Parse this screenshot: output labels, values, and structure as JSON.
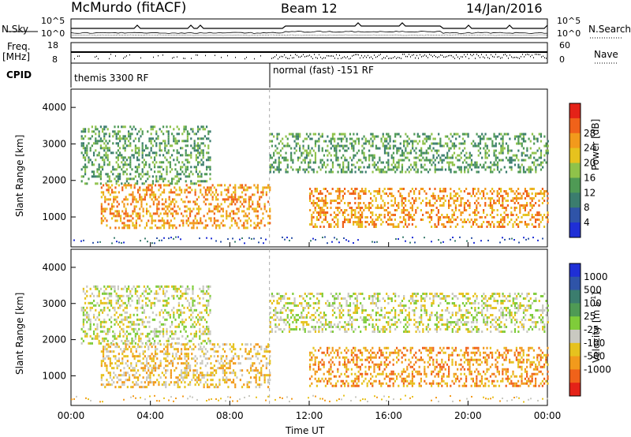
{
  "header": {
    "station": "McMurdo (fitACF)",
    "beam": "Beam 12",
    "date": "14/Jan/2016"
  },
  "strip": {
    "nsky_label": "N.Sky",
    "nsky_ticks": [
      "10^5",
      "10^0"
    ],
    "nsearch_label": "N.Search",
    "nsearch_ticks": [
      "10^5",
      "10^0"
    ],
    "freq_label": "Freq.",
    "freq_unit": "[MHz]",
    "freq_ticks": [
      "18",
      "8"
    ],
    "nave_label": "Nave",
    "nave_ticks": [
      "60",
      "0"
    ],
    "cpid_label": "CPID",
    "cpid_segments": [
      "themis 3300 RF",
      "normal (fast) -151 RF"
    ]
  },
  "colors": {
    "power": [
      "#1f2fd6",
      "#2f54a8",
      "#3b7d6e",
      "#4f9a55",
      "#8fc24a",
      "#e6c21e",
      "#f29a1c",
      "#f0621a",
      "#e42218"
    ],
    "velocity": [
      "#1f2fd6",
      "#2f54a8",
      "#3b7d6e",
      "#4f9a55",
      "#7fcc3a",
      "#c9c9c1",
      "#e6c21e",
      "#f29a1c",
      "#f0621a",
      "#e42218"
    ]
  },
  "chart_data": [
    {
      "type": "heatmap",
      "title": "",
      "xlabel": "",
      "ylabel": "Slant Range [km]",
      "xlim": [
        "00:00",
        "00:00"
      ],
      "ylim": [
        180,
        4500
      ],
      "x_ticks": [
        "00:00",
        "04:00",
        "08:00",
        "12:00",
        "16:00",
        "20:00",
        "00:00"
      ],
      "y_ticks": [
        "1000",
        "2000",
        "3000",
        "4000"
      ],
      "colorbar": {
        "label": "Power [dB]",
        "ticks": [
          "4",
          "8",
          "12",
          "16",
          "20",
          "24",
          "28"
        ],
        "range": [
          0,
          30
        ]
      },
      "bands": [
        {
          "start_h": 0.5,
          "end_h": 7.0,
          "range_km": [
            1900,
            3500
          ],
          "typical_dB": 11
        },
        {
          "start_h": 1.5,
          "end_h": 10.0,
          "range_km": [
            700,
            1900
          ],
          "typical_dB": 22
        },
        {
          "start_h": 12.0,
          "end_h": 24.0,
          "range_km": [
            700,
            1800
          ],
          "typical_dB": 23
        },
        {
          "start_h": 10.0,
          "end_h": 24.0,
          "range_km": [
            2200,
            3300
          ],
          "typical_dB": 10
        }
      ]
    },
    {
      "type": "heatmap",
      "title": "",
      "xlabel": "Time UT",
      "ylabel": "Slant Range [km]",
      "xlim": [
        "00:00",
        "00:00"
      ],
      "ylim": [
        180,
        4500
      ],
      "x_ticks": [
        "00:00",
        "04:00",
        "08:00",
        "12:00",
        "16:00",
        "20:00",
        "00:00"
      ],
      "y_ticks": [
        "1000",
        "2000",
        "3000",
        "4000"
      ],
      "colorbar": {
        "label": "Velocity [m s",
        "label_sup": "-1",
        "label_end": "]",
        "ticks": [
          "1000",
          "500",
          "100",
          "25",
          "-25",
          "-100",
          "-500",
          "-1000"
        ],
        "range": [
          -1000,
          1000
        ]
      },
      "bands": [
        {
          "start_h": 0.5,
          "end_h": 7.0,
          "range_km": [
            1900,
            3500
          ],
          "typical_ms": 0
        },
        {
          "start_h": 1.5,
          "end_h": 10.0,
          "range_km": [
            700,
            1900
          ],
          "typical_ms": -150
        },
        {
          "start_h": 12.0,
          "end_h": 24.0,
          "range_km": [
            700,
            1800
          ],
          "typical_ms": -250
        },
        {
          "start_h": 10.0,
          "end_h": 24.0,
          "range_km": [
            2200,
            3300
          ],
          "typical_ms": 0
        }
      ]
    }
  ]
}
